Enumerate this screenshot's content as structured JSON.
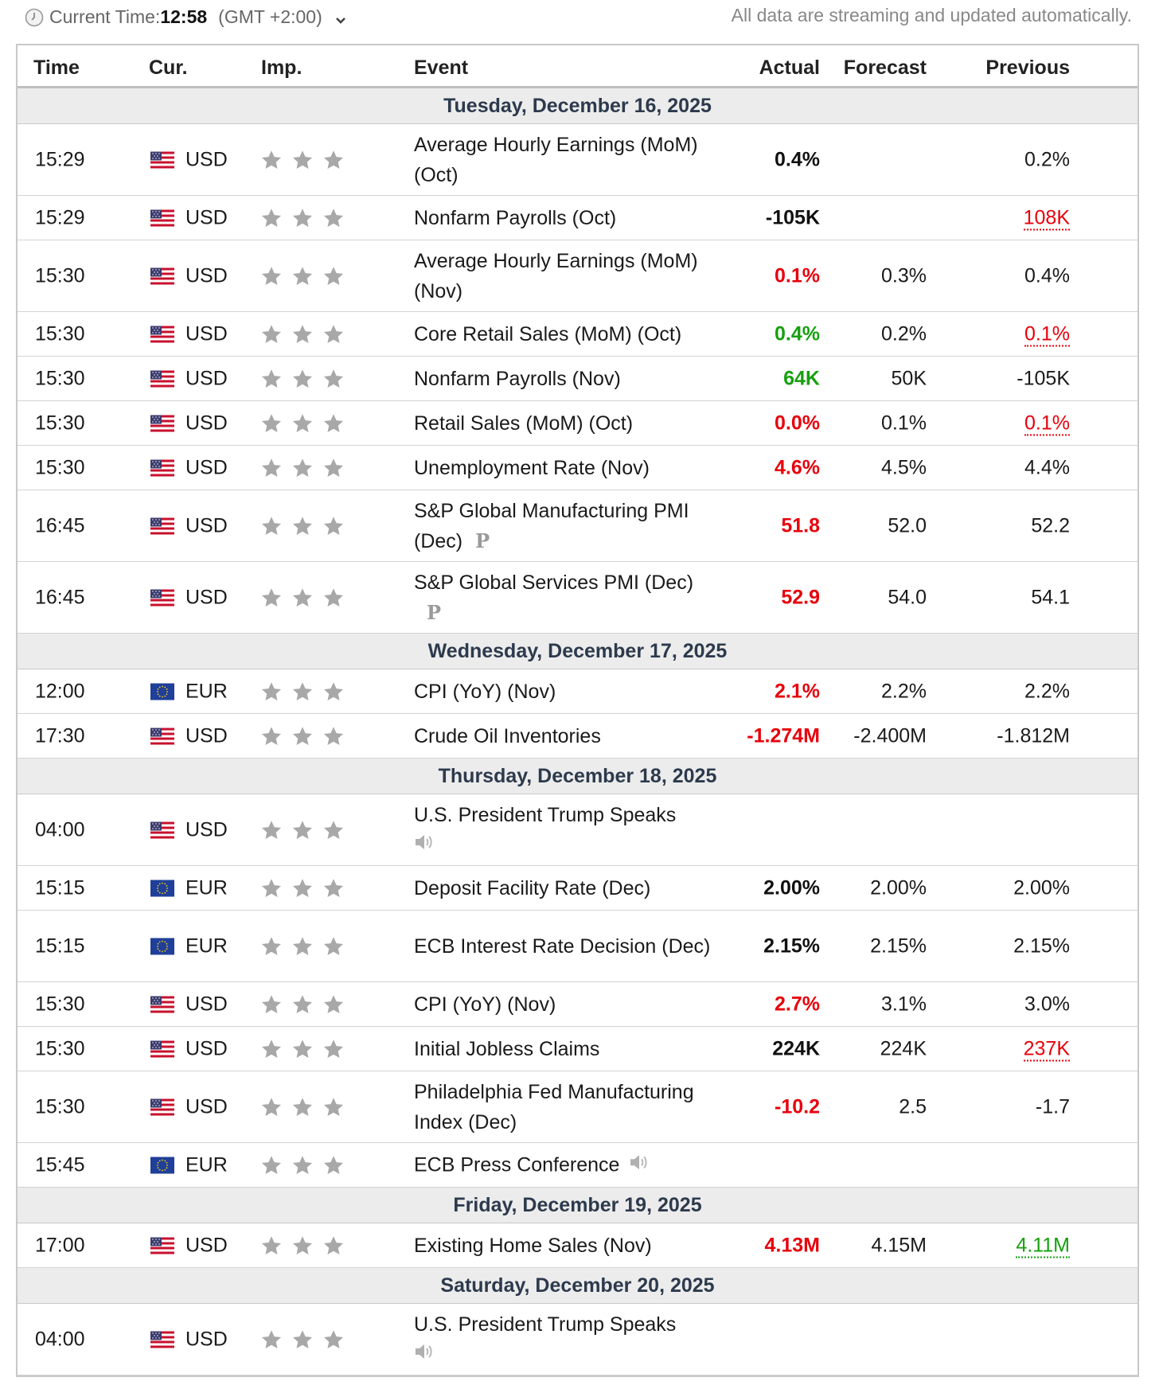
{
  "header": {
    "current_time_label": "Current Time:",
    "current_time": "12:58",
    "timezone": "(GMT +2:00)",
    "streaming_note": "All data are streaming and updated automatically."
  },
  "columns": {
    "time": "Time",
    "currency": "Cur.",
    "importance": "Imp.",
    "event": "Event",
    "actual": "Actual",
    "forecast": "Forecast",
    "previous": "Previous"
  },
  "colors": {
    "red": "#e8000b",
    "green": "#16a00e",
    "date_row_bg": "#ececec",
    "star": "#a8a8a8"
  },
  "days": [
    {
      "date": "Tuesday, December 16, 2025",
      "events": [
        {
          "time": "15:29",
          "currency": "USD",
          "flag": "us-flag-icon",
          "stars": 3,
          "event": "Average Hourly Earnings (MoM) (Oct)",
          "actual": "0.4%",
          "actual_color": "black",
          "forecast": "",
          "previous": "0.2%",
          "previous_style": "normal"
        },
        {
          "time": "15:29",
          "currency": "USD",
          "flag": "us-flag-icon",
          "stars": 3,
          "event": "Nonfarm Payrolls (Oct)",
          "actual": "-105K",
          "actual_color": "black",
          "forecast": "",
          "previous": "108K",
          "previous_style": "revised-red"
        },
        {
          "time": "15:30",
          "currency": "USD",
          "flag": "us-flag-icon",
          "stars": 3,
          "event": "Average Hourly Earnings (MoM) (Nov)",
          "actual": "0.1%",
          "actual_color": "red",
          "forecast": "0.3%",
          "previous": "0.4%",
          "previous_style": "normal"
        },
        {
          "time": "15:30",
          "currency": "USD",
          "flag": "us-flag-icon",
          "stars": 3,
          "event": "Core Retail Sales (MoM) (Oct)",
          "actual": "0.4%",
          "actual_color": "green",
          "forecast": "0.2%",
          "previous": "0.1%",
          "previous_style": "revised-red"
        },
        {
          "time": "15:30",
          "currency": "USD",
          "flag": "us-flag-icon",
          "stars": 3,
          "event": "Nonfarm Payrolls (Nov)",
          "actual": "64K",
          "actual_color": "green",
          "forecast": "50K",
          "previous": "-105K",
          "previous_style": "normal"
        },
        {
          "time": "15:30",
          "currency": "USD",
          "flag": "us-flag-icon",
          "stars": 3,
          "event": "Retail Sales (MoM) (Oct)",
          "actual": "0.0%",
          "actual_color": "red",
          "forecast": "0.1%",
          "previous": "0.1%",
          "previous_style": "revised-red"
        },
        {
          "time": "15:30",
          "currency": "USD",
          "flag": "us-flag-icon",
          "stars": 3,
          "event": "Unemployment Rate (Nov)",
          "actual": "4.6%",
          "actual_color": "red",
          "forecast": "4.5%",
          "previous": "4.4%",
          "previous_style": "normal"
        },
        {
          "time": "16:45",
          "currency": "USD",
          "flag": "us-flag-icon",
          "stars": 3,
          "event": "S&P Global Manufacturing PMI (Dec)",
          "marker": "P",
          "actual": "51.8",
          "actual_color": "red",
          "forecast": "52.0",
          "previous": "52.2",
          "previous_style": "normal"
        },
        {
          "time": "16:45",
          "currency": "USD",
          "flag": "us-flag-icon",
          "stars": 3,
          "event": "S&P Global Services PMI (Dec)",
          "marker": "P",
          "actual": "52.9",
          "actual_color": "red",
          "forecast": "54.0",
          "previous": "54.1",
          "previous_style": "normal"
        }
      ]
    },
    {
      "date": "Wednesday, December 17, 2025",
      "events": [
        {
          "time": "12:00",
          "currency": "EUR",
          "flag": "eu-flag-icon",
          "stars": 3,
          "event": "CPI (YoY) (Nov)",
          "actual": "2.1%",
          "actual_color": "red",
          "forecast": "2.2%",
          "previous": "2.2%",
          "previous_style": "normal"
        },
        {
          "time": "17:30",
          "currency": "USD",
          "flag": "us-flag-icon",
          "stars": 3,
          "event": "Crude Oil Inventories",
          "actual": "-1.274M",
          "actual_color": "red",
          "forecast": "-2.400M",
          "previous": "-1.812M",
          "previous_style": "normal"
        }
      ]
    },
    {
      "date": "Thursday, December 18, 2025",
      "events": [
        {
          "time": "04:00",
          "currency": "USD",
          "flag": "us-flag-icon",
          "stars": 3,
          "event": "U.S. President Trump Speaks",
          "speech": true,
          "actual": "",
          "actual_color": "black",
          "forecast": "",
          "previous": "",
          "previous_style": "normal"
        },
        {
          "time": "15:15",
          "currency": "EUR",
          "flag": "eu-flag-icon",
          "stars": 3,
          "event": "Deposit Facility Rate (Dec)",
          "actual": "2.00%",
          "actual_color": "black",
          "forecast": "2.00%",
          "previous": "2.00%",
          "previous_style": "normal"
        },
        {
          "time": "15:15",
          "currency": "EUR",
          "flag": "eu-flag-icon",
          "stars": 3,
          "event": "ECB Interest Rate Decision (Dec)",
          "actual": "2.15%",
          "actual_color": "black",
          "forecast": "2.15%",
          "previous": "2.15%",
          "previous_style": "normal"
        },
        {
          "time": "15:30",
          "currency": "USD",
          "flag": "us-flag-icon",
          "stars": 3,
          "event": "CPI (YoY) (Nov)",
          "actual": "2.7%",
          "actual_color": "red",
          "forecast": "3.1%",
          "previous": "3.0%",
          "previous_style": "normal"
        },
        {
          "time": "15:30",
          "currency": "USD",
          "flag": "us-flag-icon",
          "stars": 3,
          "event": "Initial Jobless Claims",
          "actual": "224K",
          "actual_color": "black",
          "forecast": "224K",
          "previous": "237K",
          "previous_style": "revised-red"
        },
        {
          "time": "15:30",
          "currency": "USD",
          "flag": "us-flag-icon",
          "stars": 3,
          "event": "Philadelphia Fed Manufacturing Index (Dec)",
          "actual": "-10.2",
          "actual_color": "red",
          "forecast": "2.5",
          "previous": "-1.7",
          "previous_style": "normal"
        },
        {
          "time": "15:45",
          "currency": "EUR",
          "flag": "eu-flag-icon",
          "stars": 3,
          "event": "ECB Press Conference",
          "speech": true,
          "speech_inline": true,
          "actual": "",
          "actual_color": "black",
          "forecast": "",
          "previous": "",
          "previous_style": "normal"
        }
      ]
    },
    {
      "date": "Friday, December 19, 2025",
      "events": [
        {
          "time": "17:00",
          "currency": "USD",
          "flag": "us-flag-icon",
          "stars": 3,
          "event": "Existing Home Sales (Nov)",
          "actual": "4.13M",
          "actual_color": "red",
          "forecast": "4.15M",
          "previous": "4.11M",
          "previous_style": "revised-green"
        }
      ]
    },
    {
      "date": "Saturday, December 20, 2025",
      "events": [
        {
          "time": "04:00",
          "currency": "USD",
          "flag": "us-flag-icon",
          "stars": 3,
          "event": "U.S. President Trump Speaks",
          "speech": true,
          "actual": "",
          "actual_color": "black",
          "forecast": "",
          "previous": "",
          "previous_style": "normal"
        }
      ]
    }
  ]
}
